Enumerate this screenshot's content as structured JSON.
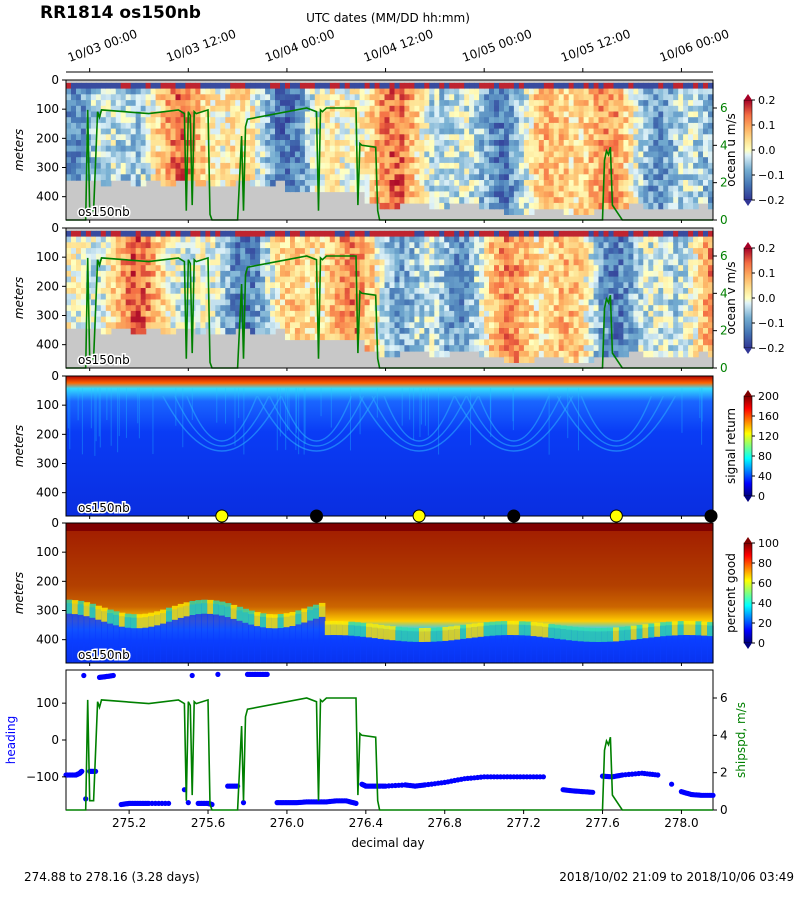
{
  "title": "RR1814 os150nb",
  "top_axis": {
    "label": "UTC dates (MM/DD hh:mm)",
    "ticks": [
      "10/03 00:00",
      "10/03 12:00",
      "10/04 00:00",
      "10/04 12:00",
      "10/05 00:00",
      "10/05 12:00",
      "10/06 00:00"
    ],
    "tick_values": [
      275.0,
      275.5,
      276.0,
      276.5,
      277.0,
      277.5,
      278.0
    ]
  },
  "footer": {
    "left": "274.88 to 278.16 (3.28 days)",
    "right": "2018/10/02 21:09 to 2018/10/06 03:49"
  },
  "colors": {
    "ship_speed": "#008000",
    "heading": "#0000ff",
    "bad_data": "#c8c8c8"
  },
  "chart_data": [
    {
      "type": "heatmap",
      "panel_label": "os150nb",
      "ylabel": "meters",
      "yticks": [
        "0",
        "100",
        "200",
        "300",
        "400"
      ],
      "ylim": [
        0,
        480
      ],
      "yreversed": true,
      "xlim": [
        274.88,
        278.16
      ],
      "colorbar": {
        "label": "ocean u m/s",
        "colormap": "RdYlBu_r",
        "range": [
          -0.2,
          0.2
        ],
        "ticks": [
          "0.2",
          "0.1",
          "0.0",
          "-0.1",
          "-0.2"
        ]
      },
      "right_axis": {
        "ticks": [
          "6",
          "4",
          "2",
          "0"
        ],
        "range": [
          0,
          7.5
        ]
      },
      "overlay_series": "ship_speed"
    },
    {
      "type": "heatmap",
      "panel_label": "os150nb",
      "ylabel": "meters",
      "yticks": [
        "0",
        "100",
        "200",
        "300",
        "400"
      ],
      "ylim": [
        0,
        480
      ],
      "yreversed": true,
      "xlim": [
        274.88,
        278.16
      ],
      "colorbar": {
        "label": "ocean v m/s",
        "colormap": "RdYlBu_r",
        "range": [
          -0.2,
          0.2
        ],
        "ticks": [
          "0.2",
          "0.1",
          "0.0",
          "-0.1",
          "-0.2"
        ]
      },
      "right_axis": {
        "ticks": [
          "6",
          "4",
          "2",
          "0"
        ],
        "range": [
          0,
          7.5
        ]
      },
      "overlay_series": "ship_speed"
    },
    {
      "type": "heatmap",
      "panel_label": "os150nb",
      "ylabel": "meters",
      "yticks": [
        "0",
        "100",
        "200",
        "300",
        "400"
      ],
      "ylim": [
        0,
        480
      ],
      "yreversed": true,
      "xlim": [
        274.88,
        278.16
      ],
      "colorbar": {
        "label": "signal return",
        "colormap": "jet",
        "range": [
          0,
          200
        ],
        "ticks": [
          "200",
          "160",
          "120",
          "80",
          "40",
          "0"
        ]
      },
      "sun_markers": [
        {
          "x": 275.67,
          "kind": "sunrise"
        },
        {
          "x": 276.15,
          "kind": "sunset"
        },
        {
          "x": 276.67,
          "kind": "sunrise"
        },
        {
          "x": 277.15,
          "kind": "sunset"
        },
        {
          "x": 277.67,
          "kind": "sunrise"
        },
        {
          "x": 278.15,
          "kind": "sunset"
        }
      ]
    },
    {
      "type": "heatmap",
      "panel_label": "os150nb",
      "ylabel": "meters",
      "yticks": [
        "0",
        "100",
        "200",
        "300",
        "400"
      ],
      "ylim": [
        0,
        480
      ],
      "yreversed": true,
      "xlim": [
        274.88,
        278.16
      ],
      "colorbar": {
        "label": "percent good",
        "colormap": "jet",
        "range": [
          0,
          100
        ],
        "ticks": [
          "100",
          "80",
          "60",
          "40",
          "20",
          "0"
        ]
      }
    },
    {
      "type": "scatter",
      "xlabel": "decimal day",
      "xticks": [
        "275.2",
        "275.6",
        "276.0",
        "276.4",
        "276.8",
        "277.2",
        "277.6",
        "278.0"
      ],
      "xtick_values": [
        275.2,
        275.6,
        276.0,
        276.4,
        276.8,
        277.2,
        277.6,
        278.0
      ],
      "xlim": [
        274.88,
        278.16
      ],
      "ylabel": "heading",
      "yticks": [
        "100",
        "0",
        "−100"
      ],
      "ylim": [
        -190,
        190
      ],
      "right_ylabel": "shipspd, m/s",
      "right_yticks": [
        "6",
        "4",
        "2",
        "0"
      ],
      "right_ylim": [
        0,
        7.5
      ],
      "series": [
        {
          "name": "heading",
          "color": "#0000ff",
          "x": [
            274.88,
            274.93,
            274.95,
            274.96,
            274.97,
            274.98,
            275.0,
            275.03,
            275.05,
            275.08,
            275.12,
            275.16,
            275.2,
            275.25,
            275.3,
            275.4,
            275.48,
            275.5,
            275.52,
            275.55,
            275.6,
            275.62,
            275.65,
            275.7,
            275.75,
            275.78,
            275.8,
            275.85,
            275.9,
            275.95,
            276.0,
            276.05,
            276.1,
            276.15,
            276.2,
            276.25,
            276.3,
            276.35,
            276.38,
            276.4,
            276.45,
            276.5,
            276.6,
            276.65,
            276.7,
            276.8,
            276.9,
            277.0,
            277.1,
            277.2,
            277.3,
            277.4,
            277.45,
            277.5,
            277.55,
            277.6,
            277.65,
            277.7,
            277.8,
            277.88,
            277.95,
            278.0,
            278.05,
            278.1,
            278.16
          ],
          "y": [
            -95,
            -95,
            -90,
            -85,
            175,
            -160,
            -85,
            -85,
            170,
            172,
            175,
            -175,
            -172,
            -172,
            -172,
            -172,
            -135,
            -170,
            175,
            -172,
            -172,
            -175,
            178,
            -125,
            -125,
            -170,
            178,
            178,
            178,
            -170,
            -170,
            -170,
            -168,
            -168,
            -168,
            -165,
            -165,
            -172,
            -120,
            -125,
            -125,
            -125,
            -122,
            -125,
            -122,
            -115,
            -105,
            -100,
            -100,
            -100,
            -100,
            -135,
            -138,
            -140,
            -142,
            -98,
            -100,
            -95,
            -90,
            -95,
            -120,
            -140,
            -148,
            -150,
            -150
          ]
        },
        {
          "name": "ship_speed",
          "color": "#008000",
          "x": [
            274.88,
            274.98,
            274.99,
            275.0,
            275.02,
            275.04,
            275.05,
            275.06,
            275.3,
            275.45,
            275.48,
            275.49,
            275.5,
            275.51,
            275.52,
            275.53,
            275.54,
            275.6,
            275.61,
            275.62,
            275.65,
            275.75,
            275.77,
            275.78,
            275.79,
            275.8,
            276.1,
            276.15,
            276.16,
            276.17,
            276.18,
            276.2,
            276.35,
            276.36,
            276.37,
            276.38,
            276.45,
            276.46,
            276.47,
            276.48,
            277.58,
            277.6,
            277.61,
            277.62,
            277.63,
            277.64,
            277.65,
            277.7,
            278.16
          ],
          "y": [
            0,
            0,
            5.9,
            0.5,
            0.5,
            5.8,
            5.5,
            5.9,
            5.7,
            5.9,
            5.7,
            0.5,
            5.8,
            5.6,
            0.8,
            5.8,
            5.7,
            5.9,
            0.3,
            0,
            0,
            0,
            4.5,
            0.5,
            5.0,
            5.4,
            6.0,
            5.8,
            0.5,
            5.9,
            5.8,
            6.0,
            6.0,
            0.8,
            4.1,
            4.0,
            3.9,
            0.5,
            0,
            0,
            0,
            0,
            3.2,
            3.7,
            3.5,
            3.9,
            0.8,
            0,
            0
          ]
        }
      ]
    }
  ]
}
